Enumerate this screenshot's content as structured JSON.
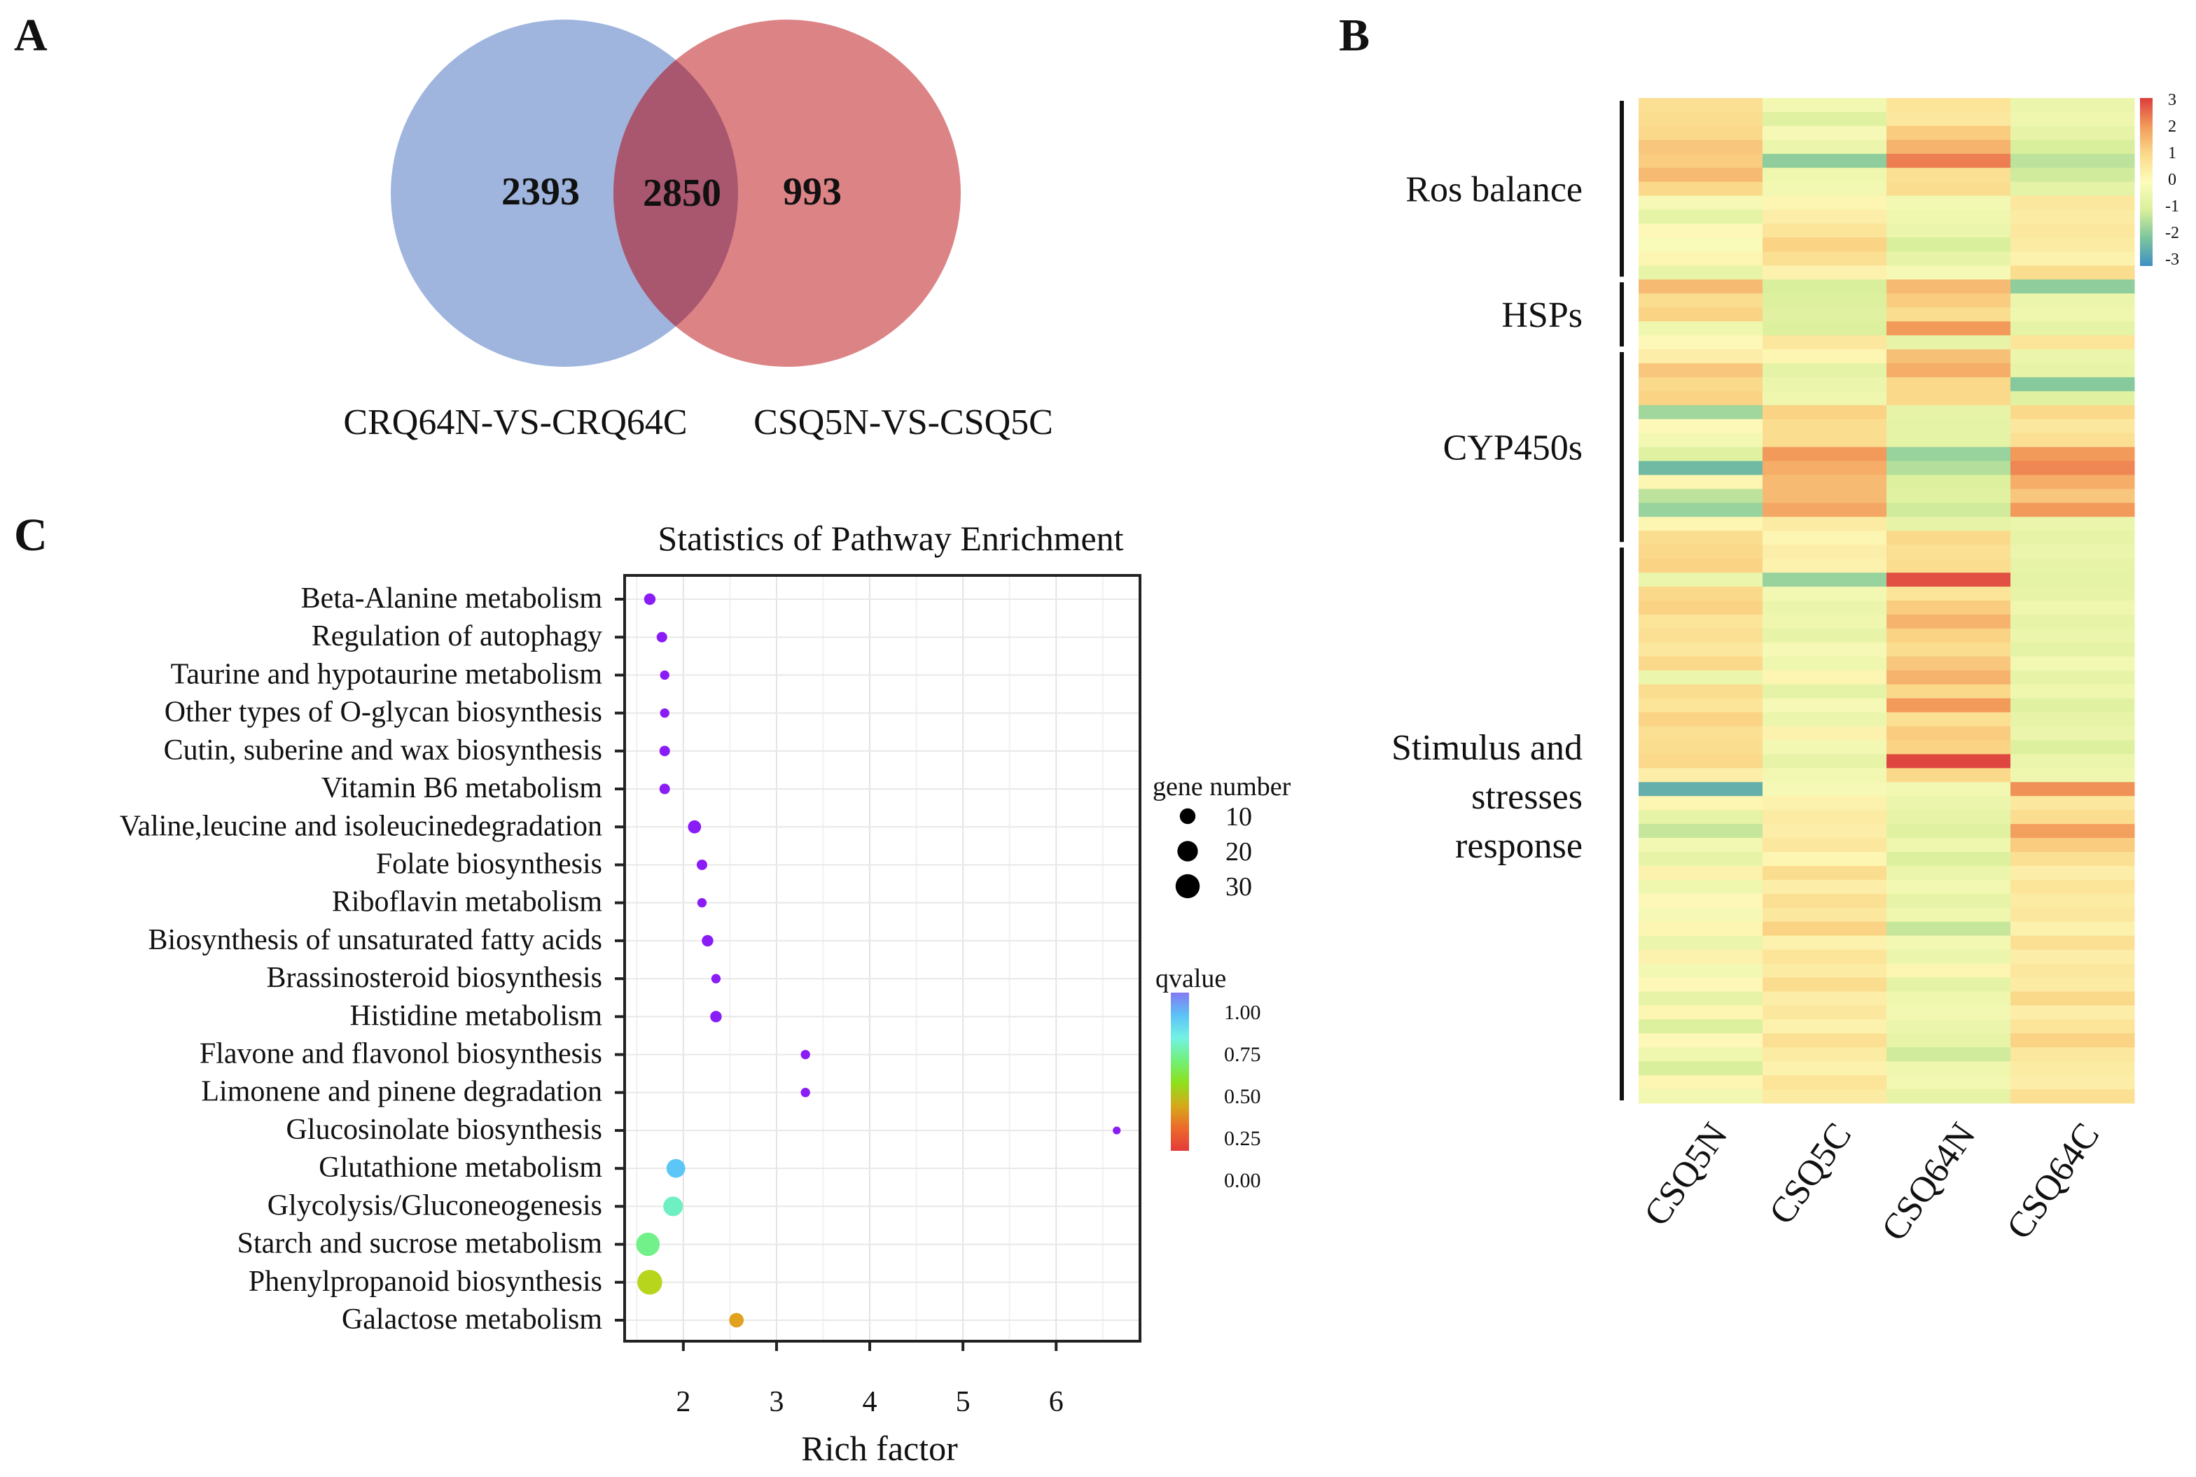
{
  "panels": {
    "a": "A",
    "b": "B",
    "c": "C"
  },
  "chart_data": [
    {
      "type": "venn",
      "sets": [
        "CRQ64N-VS-CRQ64C",
        "CSQ5N-VS-CSQ5C"
      ],
      "only_left": "2393",
      "intersection": "2850",
      "only_right": "993",
      "colors": {
        "left": "#9fb5de",
        "right": "#dc8386",
        "overlap": "#a9566f"
      }
    },
    {
      "type": "heatmap",
      "columns": [
        "CSQ5N",
        "CSQ5C",
        "CSQ64N",
        "CSQ64C"
      ],
      "groups": [
        {
          "label_lines": [
            "Ros balance"
          ],
          "rows": [
            0,
            12
          ]
        },
        {
          "label_lines": [
            "HSPs"
          ],
          "rows": [
            13,
            17
          ]
        },
        {
          "label_lines": [
            "CYP450s"
          ],
          "rows": [
            18,
            31
          ]
        },
        {
          "label_lines": [
            "Stimulus and",
            "stresses",
            "response"
          ],
          "rows": [
            32,
            71
          ]
        }
      ],
      "scale": {
        "min": -3,
        "max": 3,
        "ticks": [
          "3",
          "2",
          "1",
          "0",
          "-1",
          "-2",
          "-3"
        ],
        "colors": [
          "#3f8fc4",
          "#7cc59c",
          "#d9ef9b",
          "#fdfcbc",
          "#fbd98a",
          "#f29a5a",
          "#dd3d3d"
        ]
      },
      "values": [
        [
          0.8,
          -0.3,
          0.7,
          -0.5
        ],
        [
          0.9,
          -0.8,
          0.6,
          -0.4
        ],
        [
          1.0,
          -0.2,
          1.2,
          -0.6
        ],
        [
          1.3,
          -0.5,
          1.6,
          -1.0
        ],
        [
          1.2,
          -1.8,
          2.3,
          -1.3
        ],
        [
          1.5,
          -0.4,
          0.8,
          -1.1
        ],
        [
          1.0,
          -0.3,
          0.9,
          -0.7
        ],
        [
          -0.2,
          0.2,
          -0.3,
          0.6
        ],
        [
          -0.7,
          0.4,
          -0.4,
          0.5
        ],
        [
          0.1,
          0.7,
          -0.5,
          0.6
        ],
        [
          -0.1,
          1.1,
          -1.0,
          0.5
        ],
        [
          0.2,
          0.8,
          -0.6,
          0.3
        ],
        [
          -0.6,
          0.3,
          -0.2,
          0.9
        ],
        [
          1.5,
          -1.0,
          1.5,
          -1.8
        ],
        [
          0.9,
          -0.9,
          1.2,
          -0.5
        ],
        [
          1.1,
          -0.8,
          0.9,
          -0.4
        ],
        [
          -0.4,
          -0.9,
          2.0,
          -0.7
        ],
        [
          0.1,
          0.6,
          -0.6,
          0.7
        ],
        [
          0.4,
          0.2,
          1.4,
          -0.5
        ],
        [
          1.3,
          -0.7,
          1.7,
          -0.6
        ],
        [
          1.0,
          -0.5,
          1.0,
          -1.9
        ],
        [
          1.1,
          -0.4,
          1.0,
          -0.8
        ],
        [
          -1.6,
          1.1,
          -0.6,
          1.0
        ],
        [
          0.1,
          0.9,
          -0.7,
          0.6
        ],
        [
          -0.3,
          0.9,
          -0.7,
          0.8
        ],
        [
          -0.8,
          2.0,
          -1.7,
          2.0
        ],
        [
          -2.2,
          1.7,
          -1.4,
          2.2
        ],
        [
          0.2,
          1.5,
          -0.9,
          1.7
        ],
        [
          -1.3,
          1.5,
          -0.8,
          1.3
        ],
        [
          -1.7,
          1.8,
          -1.1,
          2.0
        ],
        [
          0.2,
          0.5,
          -0.6,
          -0.5
        ],
        [
          0.9,
          0.2,
          1.0,
          -0.6
        ],
        [
          1.0,
          0.4,
          0.8,
          -0.5
        ],
        [
          1.1,
          0.3,
          0.9,
          -0.6
        ],
        [
          -0.5,
          -1.7,
          2.8,
          -0.7
        ],
        [
          1.0,
          -0.3,
          0.7,
          -0.6
        ],
        [
          1.1,
          -0.5,
          1.2,
          -0.4
        ],
        [
          0.7,
          -0.4,
          1.6,
          -0.6
        ],
        [
          0.8,
          -0.6,
          1.1,
          -0.5
        ],
        [
          0.6,
          -0.2,
          0.9,
          -0.7
        ],
        [
          1.0,
          -0.4,
          1.3,
          -0.3
        ],
        [
          -0.5,
          0.2,
          1.6,
          -0.6
        ],
        [
          0.9,
          -0.7,
          1.0,
          -0.4
        ],
        [
          0.7,
          -0.2,
          2.0,
          -0.8
        ],
        [
          1.1,
          -0.5,
          0.8,
          -0.6
        ],
        [
          0.8,
          0.3,
          1.2,
          -0.5
        ],
        [
          0.9,
          -0.3,
          1.1,
          -0.9
        ],
        [
          1.0,
          -0.6,
          2.9,
          -0.5
        ],
        [
          0.4,
          -0.3,
          1.0,
          -0.4
        ],
        [
          -2.4,
          -0.2,
          -0.3,
          2.1
        ],
        [
          0.2,
          0.3,
          -0.5,
          0.6
        ],
        [
          -0.7,
          0.5,
          -0.6,
          0.9
        ],
        [
          -1.2,
          0.4,
          -0.8,
          1.9
        ],
        [
          -0.3,
          0.6,
          -0.4,
          1.2
        ],
        [
          -0.6,
          0.2,
          -0.9,
          0.8
        ],
        [
          0.3,
          0.9,
          -0.5,
          0.4
        ],
        [
          -0.4,
          0.4,
          -0.3,
          0.7
        ],
        [
          0.1,
          0.8,
          -0.6,
          0.5
        ],
        [
          -0.2,
          0.6,
          -0.4,
          0.6
        ],
        [
          0.2,
          1.1,
          -1.2,
          0.3
        ],
        [
          -0.5,
          0.3,
          -0.3,
          0.8
        ],
        [
          0.3,
          0.7,
          -0.5,
          0.4
        ],
        [
          -0.3,
          0.5,
          0.2,
          0.6
        ],
        [
          0.1,
          0.9,
          -0.7,
          0.5
        ],
        [
          -0.6,
          0.4,
          -0.4,
          1.0
        ],
        [
          0.2,
          0.6,
          -0.3,
          0.4
        ],
        [
          -0.9,
          0.3,
          -0.5,
          0.7
        ],
        [
          0.1,
          0.8,
          -0.6,
          1.1
        ],
        [
          -0.4,
          0.5,
          -1.1,
          0.6
        ],
        [
          -1.0,
          0.3,
          -0.4,
          0.5
        ],
        [
          0.2,
          0.7,
          -0.3,
          0.4
        ],
        [
          -0.3,
          0.5,
          -0.6,
          0.8
        ]
      ]
    },
    {
      "type": "scatter",
      "title": "Statistics of Pathway Enrichment",
      "xlabel": "Rich factor",
      "xlim": [
        1.37,
        6.9
      ],
      "xticks": [
        "2",
        "3",
        "4",
        "5",
        "6"
      ],
      "grid": true,
      "categories": [
        "Beta-Alanine metabolism",
        "Regulation of autophagy",
        "Taurine and hypotaurine metabolism",
        "Other types of O-glycan biosynthesis",
        "Cutin, suberine and wax biosynthesis",
        "Vitamin B6 metabolism",
        "Valine,leucine and isoleucinedegradation",
        "Folate biosynthesis",
        "Riboflavin metabolism",
        "Biosynthesis of unsaturated fatty acids",
        "Brassinosteroid biosynthesis",
        "Histidine metabolism",
        "Flavone and flavonol biosynthesis",
        "Limonene and pinene degradation",
        "Glucosinolate biosynthesis",
        "Glutathione metabolism",
        "Glycolysis/Gluconeogenesis",
        "Starch and sucrose metabolism",
        "Phenylpropanoid biosynthesis",
        "Galactose metabolism"
      ],
      "rich_factor": [
        1.64,
        1.77,
        1.8,
        1.8,
        1.8,
        1.8,
        2.12,
        2.2,
        2.2,
        2.26,
        2.35,
        2.35,
        3.31,
        3.31,
        6.65,
        1.92,
        1.89,
        1.62,
        1.64,
        2.57
      ],
      "gene_number": [
        4,
        3,
        2,
        2,
        3,
        3,
        6,
        3,
        2,
        4,
        2,
        4,
        2,
        2,
        1,
        16,
        18,
        28,
        32,
        8
      ],
      "qvalue": [
        1.0,
        1.0,
        1.0,
        1.0,
        1.0,
        1.0,
        1.0,
        1.0,
        1.0,
        1.0,
        1.0,
        1.0,
        1.0,
        1.0,
        1.0,
        0.9,
        0.78,
        0.68,
        0.5,
        0.32
      ],
      "point_colors": [
        "#8a1cf6",
        "#8a1cf6",
        "#8a1cf6",
        "#8a1cf6",
        "#8a1cf6",
        "#8a1cf6",
        "#8a1cf6",
        "#8a1cf6",
        "#8a1cf6",
        "#8a1cf6",
        "#8a1cf6",
        "#8a1cf6",
        "#8a1cf6",
        "#8a1cf6",
        "#8a1cf6",
        "#5cc6f6",
        "#6ff0c2",
        "#72f08a",
        "#b7d51c",
        "#e2a11e"
      ],
      "size_legend": {
        "title": "gene number",
        "values": [
          "10",
          "20",
          "30"
        ]
      },
      "color_legend": {
        "title": "qvalue",
        "ticks": [
          "1.00",
          "0.75",
          "0.50",
          "0.25",
          "0.00"
        ],
        "colors": [
          "#8479f4",
          "#5cc2f6",
          "#73f2e4",
          "#70f07a",
          "#8ee01a",
          "#d6a91a",
          "#ec6a2a",
          "#e53a3a"
        ]
      }
    }
  ]
}
